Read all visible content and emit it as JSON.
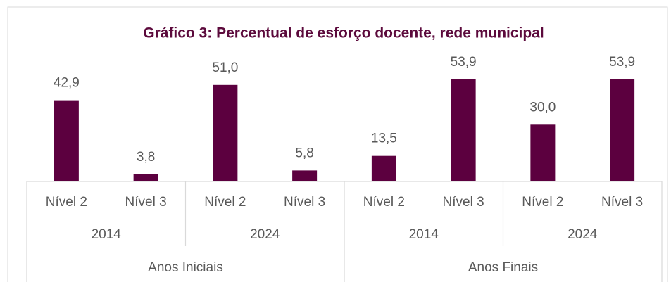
{
  "chart_data": {
    "type": "bar",
    "title": "Gráfico 3: Percentual de esforço docente, rede municipal",
    "categories": [
      "Nível 2",
      "Nível 3",
      "Nível 2",
      "Nível 3",
      "Nível 2",
      "Nível 3",
      "Nível 2",
      "Nível 3"
    ],
    "group_labels": [
      "2014",
      "2024",
      "2014",
      "2024"
    ],
    "super_group_labels": [
      "Anos Iniciais",
      "Anos Finais"
    ],
    "values": [
      42.9,
      3.8,
      51.0,
      5.8,
      13.5,
      53.9,
      30.0,
      53.9
    ],
    "value_labels": [
      "42,9",
      "3,8",
      "51,0",
      "5,8",
      "13,5",
      "53,9",
      "30,0",
      "53,9"
    ],
    "color": "#5c003f"
  }
}
